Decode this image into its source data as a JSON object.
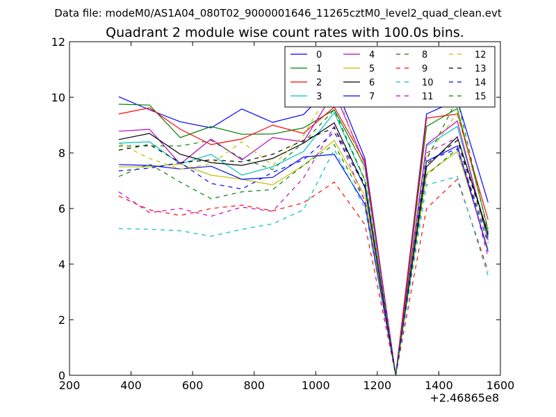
{
  "chart_data": {
    "type": "line",
    "suptitle": "Data file: modeM0/AS1A04_080T02_9000001646_11265cztM0_level2_quad_clean.evt",
    "title": "Quadrant 2 module wise count rates with 100.0s bins.",
    "xlabel": "",
    "ylabel": "",
    "x_offset_label": "+2.46865e8",
    "xlim": [
      200,
      1600
    ],
    "ylim": [
      0,
      12
    ],
    "xticks": [
      200,
      400,
      600,
      800,
      1000,
      1200,
      1400,
      1600
    ],
    "yticks": [
      0,
      2,
      4,
      6,
      8,
      10,
      12
    ],
    "x": [
      360,
      460,
      560,
      660,
      760,
      860,
      960,
      1060,
      1160,
      1260,
      1360,
      1460,
      1560
    ],
    "series": [
      {
        "name": "0",
        "color": "#0000ff",
        "dash": "solid",
        "values": [
          10.02,
          9.55,
          9.12,
          8.9,
          9.58,
          9.1,
          9.38,
          10.5,
          7.8,
          0.0,
          9.4,
          9.9,
          6.22
        ]
      },
      {
        "name": "1",
        "color": "#008000",
        "dash": "solid",
        "values": [
          9.75,
          9.72,
          8.55,
          8.95,
          8.67,
          8.68,
          8.9,
          9.55,
          7.5,
          0.0,
          8.95,
          9.6,
          5.25
        ]
      },
      {
        "name": "2",
        "color": "#ff0000",
        "dash": "solid",
        "values": [
          9.4,
          9.62,
          8.85,
          8.3,
          8.5,
          9.0,
          8.7,
          9.65,
          7.7,
          0.0,
          9.25,
          9.4,
          5.6
        ]
      },
      {
        "name": "3",
        "color": "#00bfbf",
        "dash": "solid",
        "values": [
          8.35,
          8.4,
          7.6,
          7.95,
          7.2,
          7.5,
          8.05,
          9.45,
          7.0,
          0.0,
          8.25,
          8.95,
          5.0
        ]
      },
      {
        "name": "4",
        "color": "#bf00bf",
        "dash": "solid",
        "values": [
          8.78,
          8.85,
          7.6,
          8.5,
          7.75,
          8.55,
          8.4,
          10.2,
          7.6,
          0.0,
          8.3,
          9.15,
          4.85
        ]
      },
      {
        "name": "5",
        "color": "#bfbf00",
        "dash": "solid",
        "values": [
          7.5,
          7.5,
          7.6,
          7.2,
          7.05,
          6.85,
          7.55,
          8.45,
          6.45,
          0.0,
          7.25,
          8.05,
          4.55
        ]
      },
      {
        "name": "6",
        "color": "#000000",
        "dash": "solid",
        "values": [
          8.48,
          8.7,
          7.95,
          7.65,
          7.55,
          7.8,
          8.35,
          9.08,
          6.75,
          0.0,
          7.5,
          8.58,
          5.1
        ]
      },
      {
        "name": "7",
        "color": "#0000ff",
        "dash": "solid",
        "values": [
          7.58,
          7.55,
          7.42,
          7.52,
          7.05,
          7.12,
          7.85,
          7.95,
          6.15,
          0.0,
          7.7,
          8.25,
          4.45
        ]
      },
      {
        "name": "8",
        "color": "#008000",
        "dash": "dashed",
        "values": [
          7.15,
          7.6,
          6.95,
          6.35,
          6.6,
          6.68,
          7.55,
          8.3,
          6.28,
          0.0,
          7.2,
          8.15,
          4.95
        ]
      },
      {
        "name": "9",
        "color": "#ff0000",
        "dash": "dashed",
        "values": [
          6.45,
          5.95,
          5.75,
          6.0,
          6.12,
          5.92,
          6.2,
          6.95,
          5.42,
          0.0,
          6.0,
          7.05,
          3.75
        ]
      },
      {
        "name": "10",
        "color": "#00bfbf",
        "dash": "dashed",
        "values": [
          5.28,
          5.25,
          5.2,
          5.0,
          5.25,
          5.45,
          5.95,
          8.12,
          6.0,
          0.0,
          6.85,
          7.15,
          3.58
        ]
      },
      {
        "name": "11",
        "color": "#bf00bf",
        "dash": "dashed",
        "values": [
          6.6,
          5.85,
          6.0,
          5.72,
          6.05,
          5.9,
          7.1,
          8.95,
          6.25,
          0.0,
          8.0,
          8.55,
          4.25
        ]
      },
      {
        "name": "12",
        "color": "#bfbf00",
        "dash": "dashed",
        "values": [
          8.35,
          7.8,
          7.42,
          7.6,
          8.4,
          7.55,
          8.62,
          10.52,
          7.3,
          0.0,
          7.85,
          9.45,
          5.25
        ]
      },
      {
        "name": "13",
        "color": "#000000",
        "dash": "dashed",
        "values": [
          8.1,
          8.3,
          7.65,
          7.75,
          7.68,
          7.95,
          8.45,
          8.9,
          6.85,
          0.0,
          7.6,
          8.45,
          5.05
        ]
      },
      {
        "name": "14",
        "color": "#0000ff",
        "dash": "dashed",
        "values": [
          7.35,
          7.45,
          7.65,
          6.9,
          6.7,
          7.3,
          7.75,
          8.75,
          6.8,
          0.0,
          7.7,
          8.15,
          4.75
        ]
      },
      {
        "name": "15",
        "color": "#008000",
        "dash": "dashed",
        "values": [
          8.25,
          8.25,
          8.25,
          8.45,
          7.8,
          7.4,
          8.38,
          9.55,
          7.02,
          0.0,
          7.75,
          9.95,
          5.15
        ]
      }
    ],
    "legend": {
      "position": "top-right",
      "columns": 4
    },
    "grid": false
  }
}
